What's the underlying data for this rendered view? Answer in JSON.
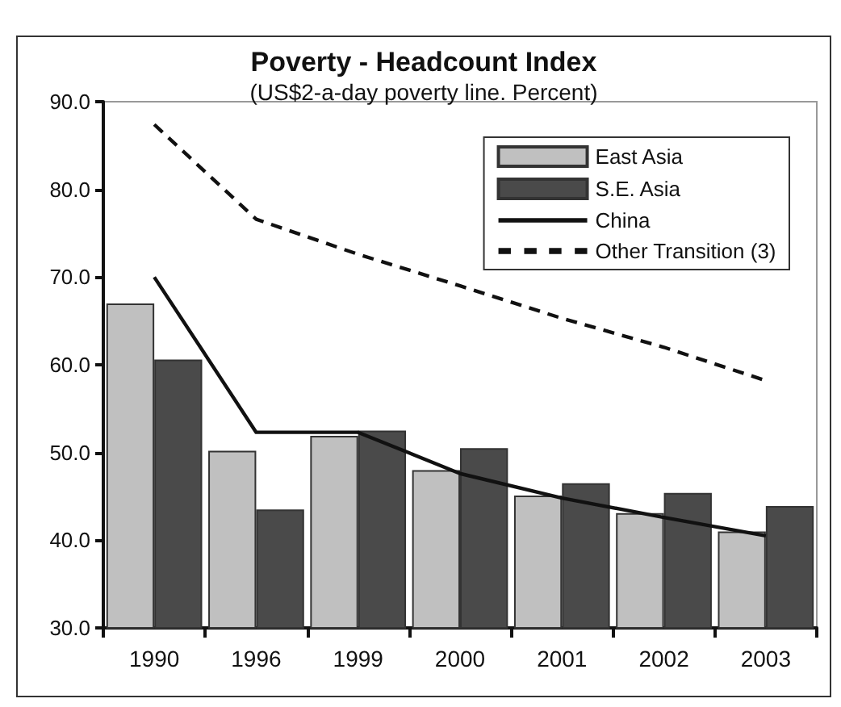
{
  "chart_data": {
    "type": "bar",
    "title": "Poverty - Headcount Index",
    "subtitle": "(US$2-a-day poverty line. Percent)",
    "categories": [
      "1990",
      "1996",
      "1999",
      "2000",
      "2001",
      "2002",
      "2003"
    ],
    "series": [
      {
        "name": "East Asia",
        "color": "#c0c0c0",
        "values": [
          67.0,
          50.2,
          51.9,
          48.0,
          45.1,
          43.1,
          41.0
        ]
      },
      {
        "name": "S.E. Asia",
        "color": "#4a4a4a",
        "values": [
          60.6,
          43.5,
          52.5,
          50.5,
          46.5,
          45.4,
          43.9
        ]
      },
      {
        "name": "China",
        "type": "line",
        "color": "#111111",
        "line_style": "solid",
        "values": [
          70.0,
          52.3,
          52.3,
          47.6,
          44.8,
          42.6,
          40.5
        ]
      },
      {
        "name": "Other Transition (3)",
        "type": "line",
        "color": "#111111",
        "line_style": "dashed",
        "values": [
          87.4,
          76.6,
          72.6,
          69.0,
          65.3,
          62.0,
          58.2
        ]
      }
    ],
    "ylim": [
      30,
      90
    ],
    "yticks": [
      {
        "value": 30,
        "label": "30.0"
      },
      {
        "value": 40,
        "label": "40.0"
      },
      {
        "value": 50,
        "label": "50.0"
      },
      {
        "value": 60,
        "label": "60.0"
      },
      {
        "value": 70,
        "label": "70.0"
      },
      {
        "value": 80,
        "label": "80.0"
      },
      {
        "value": 90,
        "label": "90.0"
      }
    ],
    "grid": false,
    "legend": "top right",
    "marker": "none"
  }
}
